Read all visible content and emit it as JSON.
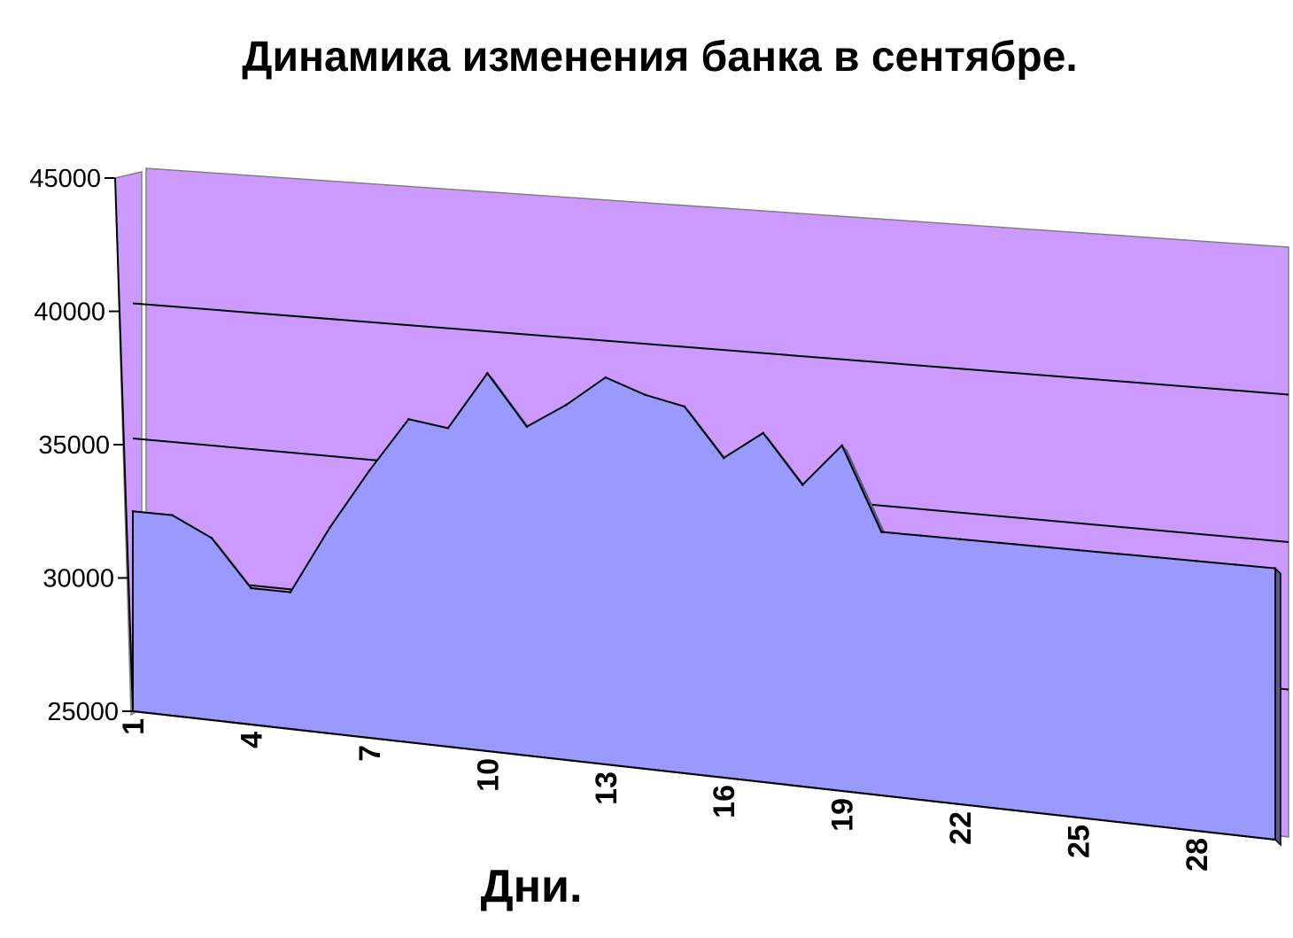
{
  "chart_data": {
    "type": "area",
    "title": "Динамика изменения банка в сентябре.",
    "xlabel": "Дни.",
    "ylabel": "",
    "ylim": [
      25000,
      45000
    ],
    "yticks": [
      25000,
      30000,
      35000,
      40000,
      45000
    ],
    "yticklabels": [
      "25000",
      "30000",
      "35000",
      "40000",
      "45000"
    ],
    "xticks": [
      1,
      4,
      7,
      10,
      13,
      16,
      19,
      22,
      25,
      28
    ],
    "xticklabels": [
      "1",
      "4",
      "7",
      "10",
      "13",
      "16",
      "19",
      "22",
      "25",
      "28"
    ],
    "grid": true,
    "legend": "none",
    "colors": {
      "wall": "#cc99ff",
      "area": "#9999ff",
      "area_edge": "#5a5a8c",
      "gridline": "#000000"
    },
    "x": [
      1,
      2,
      3,
      4,
      5,
      6,
      7,
      8,
      9,
      10,
      11,
      12,
      13,
      14,
      15,
      16,
      17,
      18,
      19,
      20,
      21,
      22,
      23,
      24,
      25,
      26,
      27,
      28,
      29,
      30
    ],
    "series": [
      {
        "values": [
          32400,
          32400,
          31700,
          30000,
          30000,
          32500,
          34700,
          36700,
          36500,
          38600,
          36800,
          37700,
          38800,
          38300,
          38000,
          36300,
          37300,
          35600,
          37100,
          34200,
          34200,
          34200,
          34200,
          34200,
          34200,
          34200,
          34200,
          34200,
          34200,
          34200
        ]
      }
    ]
  }
}
